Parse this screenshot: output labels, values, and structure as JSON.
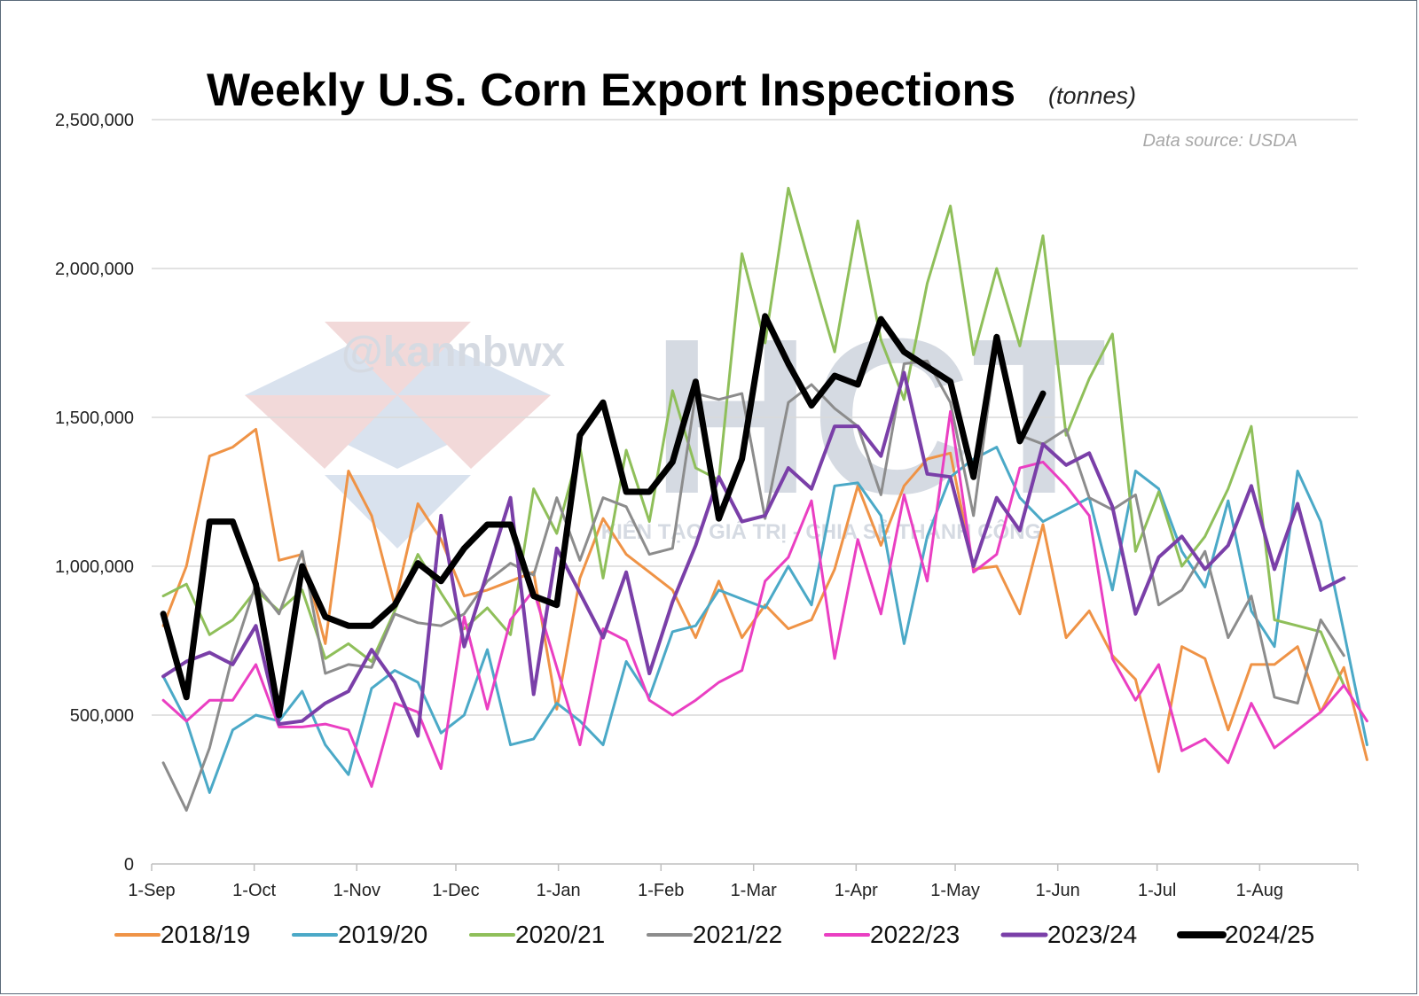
{
  "title": "Weekly U.S. Corn Export Inspections",
  "unit": "(tonnes)",
  "source": "Data source: USDA",
  "watermark": {
    "handle": "@kannbwx",
    "logo": "HCT",
    "tagline": "KIẾN TẠO GIÁ TRỊ - CHIA SẺ THÀNH CÔNG"
  },
  "chart_data": {
    "type": "line",
    "title": "Weekly U.S. Corn Export Inspections",
    "ylim": [
      0,
      2500000
    ],
    "yticks": [
      0,
      500000,
      1000000,
      1500000,
      2000000,
      2500000
    ],
    "ytick_labels": [
      "0",
      "500,000",
      "1,000,000",
      "1,500,000",
      "2,000,000",
      "2,500,000"
    ],
    "x_label_weeks": [
      0,
      4.43,
      8.86,
      13.14,
      17.57,
      22.0,
      26.0,
      30.43,
      34.71,
      39.14,
      43.43,
      47.86
    ],
    "xtick_labels": [
      "1-Sep",
      "1-Oct",
      "1-Nov",
      "1-Dec",
      "1-Jan",
      "1-Feb",
      "1-Mar",
      "1-Apr",
      "1-May",
      "1-Jun",
      "1-Jul",
      "1-Aug"
    ],
    "x_max_week": 52.1,
    "grid": true,
    "legend_position": "bottom",
    "series": [
      {
        "name": "2018/19",
        "color": "#ef9346",
        "width": 3,
        "start_week": 0.5,
        "values": [
          800000,
          1000000,
          1370000,
          1400000,
          1460000,
          1020000,
          1040000,
          740000,
          1320000,
          1170000,
          870000,
          1210000,
          1090000,
          900000,
          920000,
          950000,
          980000,
          520000,
          960000,
          1160000,
          1040000,
          980000,
          920000,
          760000,
          950000,
          760000,
          870000,
          790000,
          820000,
          990000,
          1270000,
          1070000,
          1270000,
          1360000,
          1380000,
          990000,
          1000000,
          840000,
          1140000,
          760000,
          850000,
          700000,
          620000,
          310000,
          730000,
          690000,
          450000,
          670000,
          670000,
          730000,
          510000,
          660000,
          350000
        ]
      },
      {
        "name": "2019/20",
        "color": "#4ba9c7",
        "width": 3,
        "start_week": 0.5,
        "values": [
          630000,
          480000,
          240000,
          450000,
          500000,
          480000,
          580000,
          400000,
          300000,
          590000,
          650000,
          610000,
          440000,
          500000,
          720000,
          400000,
          420000,
          540000,
          480000,
          400000,
          680000,
          560000,
          780000,
          800000,
          920000,
          890000,
          860000,
          1000000,
          870000,
          1270000,
          1280000,
          1170000,
          740000,
          1100000,
          1300000,
          1360000,
          1400000,
          1230000,
          1150000,
          1190000,
          1230000,
          920000,
          1320000,
          1260000,
          1050000,
          930000,
          1220000,
          850000,
          730000,
          1320000,
          1150000,
          780000,
          400000
        ]
      },
      {
        "name": "2020/21",
        "color": "#8fbf5a",
        "width": 3,
        "start_week": 0.5,
        "values": [
          900000,
          940000,
          770000,
          820000,
          920000,
          850000,
          920000,
          690000,
          740000,
          680000,
          850000,
          1040000,
          910000,
          790000,
          860000,
          770000,
          1260000,
          1110000,
          1400000,
          960000,
          1390000,
          1150000,
          1590000,
          1330000,
          1290000,
          2050000,
          1750000,
          2270000,
          1990000,
          1720000,
          2160000,
          1760000,
          1560000,
          1950000,
          2210000,
          1710000,
          2000000,
          1740000,
          2110000,
          1440000,
          1630000,
          1780000,
          1050000,
          1250000,
          1000000,
          1100000,
          1260000,
          1470000,
          820000,
          800000,
          780000,
          600000
        ]
      },
      {
        "name": "2021/22",
        "color": "#8c8c8c",
        "width": 3,
        "start_week": 0.5,
        "values": [
          340000,
          180000,
          390000,
          700000,
          940000,
          840000,
          1050000,
          640000,
          670000,
          660000,
          840000,
          810000,
          800000,
          840000,
          950000,
          1010000,
          970000,
          1230000,
          1020000,
          1230000,
          1200000,
          1040000,
          1060000,
          1580000,
          1560000,
          1580000,
          1160000,
          1550000,
          1610000,
          1530000,
          1470000,
          1240000,
          1680000,
          1690000,
          1550000,
          1170000,
          1750000,
          1440000,
          1410000,
          1460000,
          1230000,
          1190000,
          1240000,
          870000,
          920000,
          1050000,
          760000,
          900000,
          560000,
          540000,
          820000,
          700000
        ]
      },
      {
        "name": "2022/23",
        "color": "#ea3fc2",
        "width": 3,
        "start_week": 0.5,
        "values": [
          550000,
          480000,
          550000,
          550000,
          670000,
          460000,
          460000,
          470000,
          450000,
          260000,
          540000,
          510000,
          320000,
          830000,
          520000,
          820000,
          920000,
          660000,
          400000,
          790000,
          750000,
          550000,
          500000,
          550000,
          610000,
          650000,
          950000,
          1030000,
          1220000,
          690000,
          1090000,
          840000,
          1240000,
          950000,
          1520000,
          980000,
          1040000,
          1330000,
          1350000,
          1270000,
          1170000,
          690000,
          550000,
          670000,
          380000,
          420000,
          340000,
          540000,
          390000,
          450000,
          510000,
          600000,
          480000
        ]
      },
      {
        "name": "2023/24",
        "color": "#7a3fa8",
        "width": 4,
        "start_week": 0.5,
        "values": [
          630000,
          680000,
          710000,
          670000,
          800000,
          470000,
          480000,
          540000,
          580000,
          720000,
          610000,
          430000,
          1170000,
          730000,
          980000,
          1230000,
          570000,
          1060000,
          910000,
          760000,
          980000,
          640000,
          880000,
          1070000,
          1300000,
          1150000,
          1170000,
          1330000,
          1260000,
          1470000,
          1470000,
          1370000,
          1650000,
          1310000,
          1300000,
          1000000,
          1230000,
          1120000,
          1410000,
          1340000,
          1380000,
          1200000,
          840000,
          1030000,
          1100000,
          990000,
          1070000,
          1270000,
          990000,
          1210000,
          920000,
          960000
        ]
      },
      {
        "name": "2024/25",
        "color": "#000000",
        "width": 7,
        "start_week": 0.5,
        "values": [
          840000,
          560000,
          1150000,
          1150000,
          940000,
          500000,
          1000000,
          830000,
          800000,
          800000,
          870000,
          1010000,
          950000,
          1060000,
          1140000,
          1140000,
          900000,
          870000,
          1440000,
          1550000,
          1250000,
          1250000,
          1350000,
          1620000,
          1160000,
          1360000,
          1840000,
          1680000,
          1540000,
          1640000,
          1610000,
          1830000,
          1720000,
          1670000,
          1620000,
          1300000,
          1770000,
          1420000,
          1580000
        ]
      }
    ]
  }
}
